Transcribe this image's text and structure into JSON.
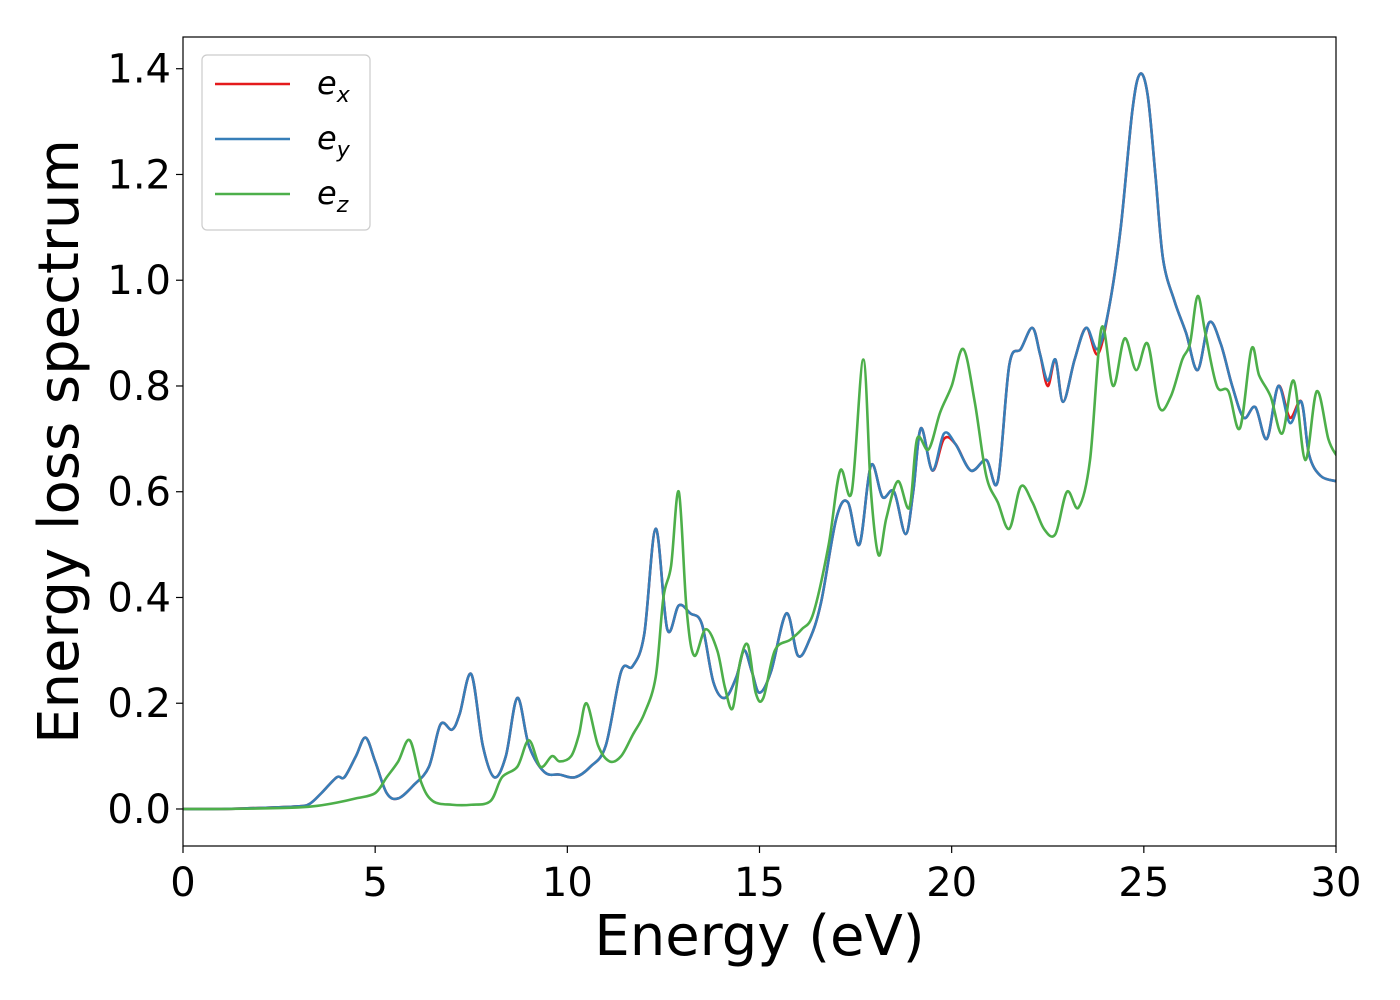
{
  "chart_data": {
    "type": "line",
    "title": "",
    "xlabel": "Energy (eV)",
    "ylabel": "Energy loss spectrum",
    "xlim": [
      0,
      30
    ],
    "ylim": [
      -0.07,
      1.46
    ],
    "xticks": [
      0,
      5,
      10,
      15,
      20,
      25,
      30
    ],
    "yticks": [
      0.0,
      0.2,
      0.4,
      0.6,
      0.8,
      1.0,
      1.2,
      1.4
    ],
    "xtick_labels": [
      "0",
      "5",
      "10",
      "15",
      "20",
      "25",
      "30"
    ],
    "ytick_labels": [
      "0.0",
      "0.2",
      "0.4",
      "0.6",
      "0.8",
      "1.0",
      "1.2",
      "1.4"
    ],
    "grid": false,
    "legend_position": "top-left",
    "series": [
      {
        "name": "e_x",
        "legend_base": "e",
        "legend_sub": "x",
        "color": "#e41a1c",
        "x": [
          0,
          1,
          2,
          3,
          3.3,
          3.6,
          4.0,
          4.2,
          4.5,
          4.75,
          5.0,
          5.3,
          5.6,
          6.0,
          6.4,
          6.7,
          7.0,
          7.2,
          7.5,
          7.8,
          8.1,
          8.4,
          8.7,
          9.0,
          9.4,
          9.8,
          10.2,
          10.6,
          11.0,
          11.4,
          11.7,
          12.0,
          12.3,
          12.6,
          12.9,
          13.2,
          13.5,
          13.8,
          14.1,
          14.4,
          14.6,
          14.8,
          15.0,
          15.3,
          15.7,
          16.0,
          16.3,
          16.6,
          17.0,
          17.3,
          17.6,
          17.9,
          18.2,
          18.5,
          18.8,
          19.0,
          19.2,
          19.5,
          19.8,
          20.1,
          20.5,
          20.9,
          21.2,
          21.5,
          21.8,
          22.1,
          22.3,
          22.5,
          22.7,
          22.9,
          23.2,
          23.5,
          23.8,
          24.1,
          24.4,
          24.7,
          24.9,
          25.1,
          25.3,
          25.5,
          25.8,
          26.1,
          26.4,
          26.7,
          27.0,
          27.3,
          27.6,
          27.9,
          28.2,
          28.5,
          28.8,
          29.1,
          29.3,
          29.6,
          30.0
        ],
        "y": [
          0.0,
          0.0,
          0.002,
          0.005,
          0.01,
          0.03,
          0.06,
          0.06,
          0.1,
          0.135,
          0.09,
          0.03,
          0.02,
          0.045,
          0.08,
          0.16,
          0.15,
          0.18,
          0.255,
          0.12,
          0.06,
          0.1,
          0.21,
          0.12,
          0.07,
          0.065,
          0.06,
          0.08,
          0.12,
          0.26,
          0.27,
          0.33,
          0.53,
          0.34,
          0.385,
          0.37,
          0.35,
          0.24,
          0.21,
          0.25,
          0.3,
          0.26,
          0.22,
          0.26,
          0.37,
          0.29,
          0.32,
          0.39,
          0.55,
          0.58,
          0.5,
          0.65,
          0.59,
          0.6,
          0.52,
          0.6,
          0.72,
          0.64,
          0.7,
          0.69,
          0.64,
          0.66,
          0.62,
          0.84,
          0.87,
          0.91,
          0.86,
          0.8,
          0.85,
          0.77,
          0.85,
          0.91,
          0.86,
          0.95,
          1.1,
          1.32,
          1.39,
          1.35,
          1.2,
          1.04,
          0.96,
          0.9,
          0.83,
          0.92,
          0.88,
          0.8,
          0.74,
          0.76,
          0.7,
          0.8,
          0.74,
          0.77,
          0.67,
          0.63,
          0.62
        ]
      },
      {
        "name": "e_y",
        "legend_base": "e",
        "legend_sub": "y",
        "color": "#377eb8",
        "x": [
          0,
          1,
          2,
          3,
          3.3,
          3.6,
          4.0,
          4.2,
          4.5,
          4.75,
          5.0,
          5.3,
          5.6,
          6.0,
          6.4,
          6.7,
          7.0,
          7.2,
          7.5,
          7.8,
          8.1,
          8.4,
          8.7,
          9.0,
          9.4,
          9.8,
          10.2,
          10.6,
          11.0,
          11.4,
          11.7,
          12.0,
          12.3,
          12.6,
          12.9,
          13.2,
          13.5,
          13.8,
          14.1,
          14.4,
          14.6,
          14.8,
          15.0,
          15.3,
          15.7,
          16.0,
          16.3,
          16.6,
          17.0,
          17.3,
          17.6,
          17.9,
          18.2,
          18.5,
          18.8,
          19.0,
          19.2,
          19.5,
          19.8,
          20.1,
          20.5,
          20.9,
          21.2,
          21.5,
          21.8,
          22.1,
          22.3,
          22.5,
          22.7,
          22.9,
          23.2,
          23.5,
          23.8,
          24.1,
          24.4,
          24.7,
          24.9,
          25.1,
          25.3,
          25.5,
          25.8,
          26.1,
          26.4,
          26.7,
          27.0,
          27.3,
          27.6,
          27.9,
          28.2,
          28.5,
          28.8,
          29.1,
          29.3,
          29.6,
          30.0
        ],
        "y": [
          0.0,
          0.0,
          0.002,
          0.005,
          0.01,
          0.03,
          0.06,
          0.06,
          0.1,
          0.135,
          0.09,
          0.03,
          0.02,
          0.045,
          0.08,
          0.16,
          0.15,
          0.18,
          0.255,
          0.12,
          0.06,
          0.1,
          0.21,
          0.12,
          0.07,
          0.065,
          0.06,
          0.08,
          0.12,
          0.26,
          0.27,
          0.33,
          0.53,
          0.34,
          0.385,
          0.37,
          0.35,
          0.24,
          0.21,
          0.25,
          0.3,
          0.26,
          0.22,
          0.26,
          0.37,
          0.29,
          0.32,
          0.39,
          0.55,
          0.58,
          0.5,
          0.65,
          0.59,
          0.6,
          0.52,
          0.6,
          0.72,
          0.64,
          0.71,
          0.69,
          0.64,
          0.66,
          0.62,
          0.84,
          0.87,
          0.91,
          0.86,
          0.81,
          0.85,
          0.77,
          0.85,
          0.91,
          0.87,
          0.95,
          1.1,
          1.32,
          1.39,
          1.35,
          1.2,
          1.04,
          0.96,
          0.9,
          0.83,
          0.92,
          0.88,
          0.8,
          0.74,
          0.76,
          0.7,
          0.8,
          0.73,
          0.77,
          0.67,
          0.63,
          0.62
        ]
      },
      {
        "name": "e_z",
        "legend_base": "e",
        "legend_sub": "z",
        "color": "#4daf4a",
        "x": [
          0,
          1,
          2,
          3,
          3.5,
          4.0,
          4.5,
          5.0,
          5.3,
          5.6,
          5.9,
          6.2,
          6.5,
          7.0,
          7.5,
          8.0,
          8.3,
          8.7,
          9.0,
          9.3,
          9.6,
          9.8,
          10.1,
          10.3,
          10.5,
          10.8,
          11.1,
          11.4,
          11.7,
          12.0,
          12.3,
          12.5,
          12.7,
          12.9,
          13.1,
          13.3,
          13.6,
          13.9,
          14.1,
          14.3,
          14.5,
          14.7,
          14.9,
          15.1,
          15.4,
          15.8,
          16.1,
          16.4,
          16.8,
          17.1,
          17.4,
          17.7,
          17.9,
          18.1,
          18.3,
          18.6,
          18.9,
          19.1,
          19.4,
          19.7,
          20.0,
          20.3,
          20.6,
          20.9,
          21.2,
          21.5,
          21.8,
          22.1,
          22.4,
          22.7,
          23.0,
          23.3,
          23.6,
          23.9,
          24.2,
          24.5,
          24.8,
          25.1,
          25.4,
          25.7,
          26.0,
          26.2,
          26.4,
          26.6,
          26.9,
          27.2,
          27.5,
          27.8,
          28.0,
          28.3,
          28.6,
          28.9,
          29.2,
          29.5,
          29.8,
          30.0
        ],
        "y": [
          0.0,
          0.0,
          0.001,
          0.003,
          0.006,
          0.012,
          0.02,
          0.03,
          0.06,
          0.09,
          0.13,
          0.05,
          0.015,
          0.008,
          0.008,
          0.015,
          0.06,
          0.08,
          0.13,
          0.08,
          0.1,
          0.09,
          0.1,
          0.14,
          0.2,
          0.12,
          0.09,
          0.1,
          0.14,
          0.18,
          0.25,
          0.4,
          0.46,
          0.6,
          0.38,
          0.29,
          0.34,
          0.3,
          0.23,
          0.19,
          0.28,
          0.31,
          0.22,
          0.21,
          0.3,
          0.32,
          0.34,
          0.37,
          0.5,
          0.64,
          0.6,
          0.85,
          0.6,
          0.48,
          0.55,
          0.62,
          0.57,
          0.7,
          0.68,
          0.75,
          0.8,
          0.87,
          0.77,
          0.63,
          0.58,
          0.53,
          0.61,
          0.58,
          0.53,
          0.52,
          0.6,
          0.57,
          0.66,
          0.91,
          0.8,
          0.89,
          0.83,
          0.88,
          0.76,
          0.78,
          0.85,
          0.88,
          0.97,
          0.9,
          0.8,
          0.79,
          0.72,
          0.87,
          0.82,
          0.78,
          0.71,
          0.81,
          0.66,
          0.79,
          0.7,
          0.67
        ]
      }
    ]
  }
}
